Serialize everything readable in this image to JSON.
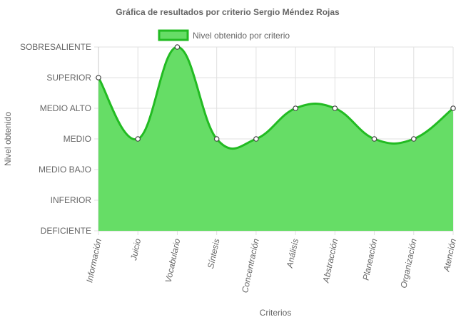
{
  "chart_data": {
    "type": "area",
    "title": "Gráfica de resultados por criterio  Sergio Méndez Rojas",
    "xlabel": "Criterios",
    "ylabel": "Nivel obtenido",
    "levels": [
      "DEFICIENTE",
      "INFERIOR",
      "MEDIO BAJO",
      "MEDIO",
      "MEDIO ALTO",
      "SUPERIOR",
      "SOBRESALIENTE"
    ],
    "categories": [
      "Información",
      "Juicio",
      "Vocabulario",
      "Síntesis",
      "Concentración",
      "Análisis",
      "Abstracción",
      "Planeación",
      "Organización",
      "Atención"
    ],
    "series": [
      {
        "name": "Nivel obtenido por criterio",
        "values": [
          "SUPERIOR",
          "MEDIO",
          "SOBRESALIENTE",
          "MEDIO",
          "MEDIO",
          "MEDIO ALTO",
          "MEDIO ALTO",
          "MEDIO",
          "MEDIO",
          "MEDIO ALTO"
        ],
        "fill": "#66dd66",
        "stroke": "#22bb22"
      }
    ],
    "legend_position": "top",
    "grid": true
  }
}
